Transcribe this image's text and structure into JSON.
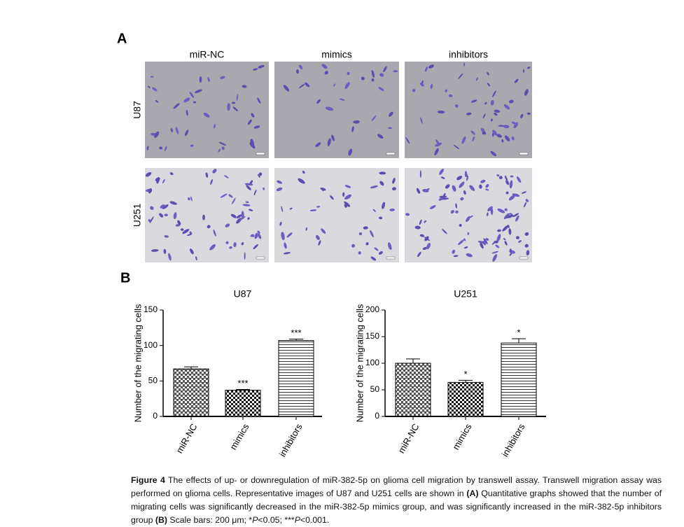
{
  "panel_a": {
    "label": "A",
    "columns": [
      "miR-NC",
      "mimics",
      "inhibitors"
    ],
    "rows": [
      "U87",
      "U251"
    ]
  },
  "panel_b": {
    "label": "B"
  },
  "chart_data": [
    {
      "type": "bar",
      "title": "U87",
      "ylabel": "Number of the migrating cells",
      "categories": [
        "miR-NC",
        "mimics",
        "inhibitors"
      ],
      "values": [
        67,
        37,
        107
      ],
      "errors": [
        3,
        1,
        2
      ],
      "annotations": [
        null,
        "***",
        "***"
      ],
      "ylim": [
        0,
        150
      ],
      "yticks": [
        0,
        50,
        100,
        150
      ]
    },
    {
      "type": "bar",
      "title": "U251",
      "ylabel": "Number of the migrating cells",
      "categories": [
        "miR-NC",
        "mimics",
        "inhibitors"
      ],
      "values": [
        100,
        64,
        138
      ],
      "errors": [
        8,
        4,
        8
      ],
      "annotations": [
        null,
        "*",
        "*"
      ],
      "ylim": [
        0,
        200
      ],
      "yticks": [
        0,
        50,
        100,
        150,
        200
      ]
    }
  ],
  "caption": {
    "label": "Figure 4",
    "text_1": " The effects of up- or downregulation of miR-382-5p on glioma cell migration by transwell assay. Transwell migration assay was performed on glioma cells. Representative images of U87 and U251 cells are shown in ",
    "ref_a": "(A)",
    "text_2": " Quantitative graphs showed that the number of migrating cells was significantly decreased in the miR-382-5p mimics group, and was significantly increased in the miR-382-5p inhibitors group ",
    "ref_b": "(B)",
    "text_3": " Scale bars: 200 μm; *",
    "p_1": "P",
    "text_4": "<0.05; ***",
    "p_2": "P",
    "text_5": "<0.001."
  }
}
